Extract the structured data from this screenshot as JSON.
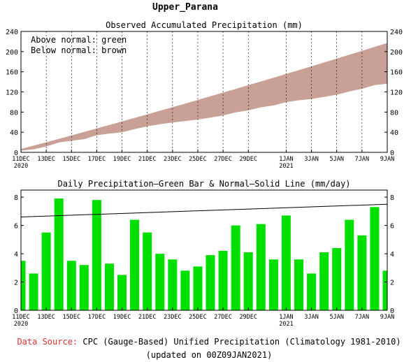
{
  "page": {
    "title": "Upper_Parana"
  },
  "chart_data": [
    {
      "type": "area",
      "title": "Observed Accumulated Precipitation (mm)",
      "legend_text": [
        "Above normal: green",
        "Below normal: brown"
      ],
      "legend_position": "top-left",
      "x_tick_labels": [
        {
          "top": "11DEC",
          "bottom": "2020",
          "day": 0
        },
        {
          "top": "13DEC",
          "bottom": "",
          "day": 2
        },
        {
          "top": "15DEC",
          "bottom": "",
          "day": 4
        },
        {
          "top": "17DEC",
          "bottom": "",
          "day": 6
        },
        {
          "top": "19DEC",
          "bottom": "",
          "day": 8
        },
        {
          "top": "21DEC",
          "bottom": "",
          "day": 10
        },
        {
          "top": "23DEC",
          "bottom": "",
          "day": 12
        },
        {
          "top": "25DEC",
          "bottom": "",
          "day": 14
        },
        {
          "top": "27DEC",
          "bottom": "",
          "day": 16
        },
        {
          "top": "29DEC",
          "bottom": "",
          "day": 18
        },
        {
          "top": "1JAN",
          "bottom": "2021",
          "day": 21
        },
        {
          "top": "3JAN",
          "bottom": "",
          "day": 23
        },
        {
          "top": "5JAN",
          "bottom": "",
          "day": 25
        },
        {
          "top": "7JAN",
          "bottom": "",
          "day": 27
        },
        {
          "top": "9JAN",
          "bottom": "",
          "day": 29
        }
      ],
      "x_range": [
        0,
        29
      ],
      "ylim": [
        0,
        240
      ],
      "y_ticks": [
        0,
        40,
        80,
        120,
        160,
        200,
        240
      ],
      "colors": {
        "below": "#c8a096",
        "above": "#00e000"
      },
      "observed": [
        3.5,
        6.1,
        11.6,
        19.5,
        23.0,
        26.2,
        34.0,
        37.3,
        39.8,
        46.2,
        51.7,
        55.7,
        59.3,
        62.1,
        65.2,
        69.1,
        73.3,
        79.3,
        83.4,
        89.5,
        93.1,
        99.8,
        103.4,
        106.0,
        110.1,
        114.5,
        120.9,
        126.2,
        133.5,
        136.3
      ],
      "normal": [
        6.6,
        13.3,
        20.0,
        26.8,
        33.6,
        40.5,
        47.4,
        54.3,
        61.3,
        68.3,
        75.4,
        82.5,
        89.6,
        96.8,
        104.0,
        111.3,
        118.6,
        125.9,
        133.3,
        140.7,
        148.2,
        155.7,
        163.2,
        170.8,
        178.4,
        186.1,
        193.8,
        201.5,
        209.3,
        217.1
      ]
    },
    {
      "type": "bar",
      "title": "Daily Precipitation–Green Bar & Normal–Solid Line (mm/day)",
      "x_tick_labels": [
        {
          "top": "11DEC",
          "bottom": "2020",
          "day": 0
        },
        {
          "top": "13DEC",
          "bottom": "",
          "day": 2
        },
        {
          "top": "15DEC",
          "bottom": "",
          "day": 4
        },
        {
          "top": "17DEC",
          "bottom": "",
          "day": 6
        },
        {
          "top": "19DEC",
          "bottom": "",
          "day": 8
        },
        {
          "top": "21DEC",
          "bottom": "",
          "day": 10
        },
        {
          "top": "23DEC",
          "bottom": "",
          "day": 12
        },
        {
          "top": "25DEC",
          "bottom": "",
          "day": 14
        },
        {
          "top": "27DEC",
          "bottom": "",
          "day": 16
        },
        {
          "top": "29DEC",
          "bottom": "",
          "day": 18
        },
        {
          "top": "1JAN",
          "bottom": "2021",
          "day": 21
        },
        {
          "top": "3JAN",
          "bottom": "",
          "day": 23
        },
        {
          "top": "5JAN",
          "bottom": "",
          "day": 25
        },
        {
          "top": "7JAN",
          "bottom": "",
          "day": 27
        },
        {
          "top": "9JAN",
          "bottom": "",
          "day": 29
        }
      ],
      "x_range": [
        0,
        29
      ],
      "ylim": [
        0,
        8.5
      ],
      "y_ticks": [
        0,
        2,
        4,
        6,
        8
      ],
      "colors": {
        "bar": "#00e000",
        "normal_line": "#000000"
      },
      "values": [
        3.5,
        2.6,
        5.5,
        7.9,
        3.5,
        3.2,
        7.8,
        3.3,
        2.5,
        6.4,
        5.5,
        4.0,
        3.6,
        2.8,
        3.1,
        3.9,
        4.2,
        6.0,
        4.1,
        6.1,
        3.6,
        6.7,
        3.6,
        2.6,
        4.1,
        4.4,
        6.4,
        5.3,
        7.3,
        2.8
      ],
      "normal_line": {
        "start": 6.6,
        "end": 7.5
      }
    }
  ],
  "footer": {
    "source_label": "Data Source:",
    "source_text": "CPC (Gauge-Based) Unified Precipitation (Climatology 1981-2010)",
    "updated": "(updated on 00Z09JAN2021)"
  }
}
